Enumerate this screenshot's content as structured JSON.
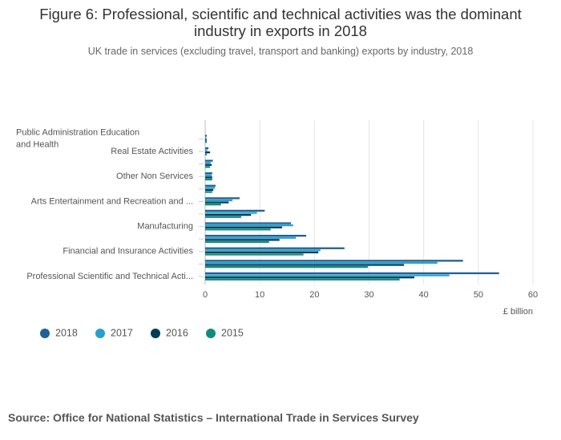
{
  "chart_data": {
    "type": "hbar",
    "title": "Figure 6: Professional, scientific and technical activities was the dominant industry in exports in 2018",
    "subtitle": "UK trade in services (excluding travel, transport and banking) exports by industry, 2018",
    "x_label": "£ billion",
    "source": "Source: Office for National Statistics – International Trade in Services Survey",
    "categories": [
      "Public Administration Education and Health",
      "Real Estate Activities",
      null,
      "Other Non Services",
      null,
      "Arts Entertainment and Recreation and ...",
      null,
      "Manufacturing",
      null,
      "Financial and Insurance Activities",
      null,
      "Professional Scientific and Technical Acti..."
    ],
    "series": [
      {
        "name": "2018",
        "color": "#206095",
        "values": [
          0.3,
          0.6,
          1.4,
          1.3,
          1.9,
          6.3,
          10.9,
          15.7,
          18.5,
          25.5,
          47.2,
          53.8
        ]
      },
      {
        "name": "2017",
        "color": "#27a0cc",
        "values": [
          0.2,
          0.4,
          1.0,
          1.2,
          1.8,
          5.0,
          9.5,
          16.1,
          16.6,
          21.1,
          42.5,
          44.7
        ]
      },
      {
        "name": "2016",
        "color": "#003c57",
        "values": [
          0.3,
          0.9,
          1.2,
          1.3,
          1.5,
          4.3,
          8.4,
          14.1,
          13.6,
          20.7,
          36.4,
          38.3
        ]
      },
      {
        "name": "2015",
        "color": "#118c7b",
        "values": [
          0.3,
          0.3,
          0.9,
          1.3,
          1.3,
          2.9,
          6.6,
          12.0,
          11.7,
          18.0,
          29.8,
          35.6
        ]
      }
    ],
    "xlim": [
      0,
      60
    ],
    "xticks": [
      0,
      10,
      20,
      30,
      40,
      50,
      60
    ],
    "grid": true
  }
}
